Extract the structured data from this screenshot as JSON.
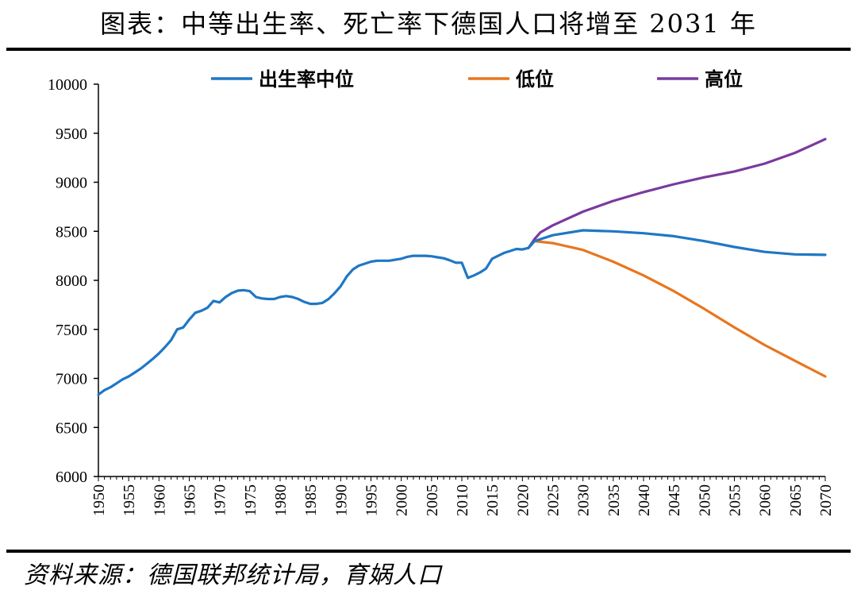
{
  "title": "图表：中等出生率、死亡率下德国人口将增至 2031 年",
  "source": "资料来源：德国联邦统计局，育娲人口",
  "chart_data": {
    "type": "line",
    "xlim": [
      1950,
      2070
    ],
    "ylim": [
      6000,
      10000
    ],
    "ylabel": "",
    "xlabel": "",
    "x_ticks": [
      1950,
      1955,
      1960,
      1965,
      1970,
      1975,
      1980,
      1985,
      1990,
      1995,
      2000,
      2005,
      2010,
      2015,
      2020,
      2025,
      2030,
      2035,
      2040,
      2045,
      2050,
      2055,
      2060,
      2065,
      2070
    ],
    "y_ticks": [
      6000,
      6500,
      7000,
      7500,
      8000,
      8500,
      9000,
      9500,
      10000
    ],
    "legend_position": "top",
    "series": [
      {
        "name": "出生率中位",
        "color": "#1f77c4",
        "points": [
          [
            1950,
            6835
          ],
          [
            1951,
            6880
          ],
          [
            1952,
            6910
          ],
          [
            1953,
            6950
          ],
          [
            1954,
            6990
          ],
          [
            1955,
            7020
          ],
          [
            1956,
            7060
          ],
          [
            1957,
            7100
          ],
          [
            1958,
            7150
          ],
          [
            1959,
            7200
          ],
          [
            1960,
            7255
          ],
          [
            1961,
            7320
          ],
          [
            1962,
            7390
          ],
          [
            1963,
            7500
          ],
          [
            1964,
            7520
          ],
          [
            1965,
            7600
          ],
          [
            1966,
            7670
          ],
          [
            1967,
            7690
          ],
          [
            1968,
            7720
          ],
          [
            1969,
            7790
          ],
          [
            1970,
            7775
          ],
          [
            1971,
            7830
          ],
          [
            1972,
            7870
          ],
          [
            1973,
            7895
          ],
          [
            1974,
            7900
          ],
          [
            1975,
            7890
          ],
          [
            1976,
            7830
          ],
          [
            1977,
            7815
          ],
          [
            1978,
            7810
          ],
          [
            1979,
            7810
          ],
          [
            1980,
            7830
          ],
          [
            1981,
            7840
          ],
          [
            1982,
            7830
          ],
          [
            1983,
            7810
          ],
          [
            1984,
            7780
          ],
          [
            1985,
            7760
          ],
          [
            1986,
            7760
          ],
          [
            1987,
            7770
          ],
          [
            1988,
            7810
          ],
          [
            1989,
            7870
          ],
          [
            1990,
            7940
          ],
          [
            1991,
            8040
          ],
          [
            1992,
            8110
          ],
          [
            1993,
            8150
          ],
          [
            1994,
            8170
          ],
          [
            1995,
            8190
          ],
          [
            1996,
            8200
          ],
          [
            1997,
            8200
          ],
          [
            1998,
            8200
          ],
          [
            1999,
            8210
          ],
          [
            2000,
            8220
          ],
          [
            2001,
            8240
          ],
          [
            2002,
            8250
          ],
          [
            2003,
            8250
          ],
          [
            2004,
            8250
          ],
          [
            2005,
            8245
          ],
          [
            2006,
            8235
          ],
          [
            2007,
            8225
          ],
          [
            2008,
            8205
          ],
          [
            2009,
            8180
          ],
          [
            2010,
            8180
          ],
          [
            2011,
            8025
          ],
          [
            2012,
            8050
          ],
          [
            2013,
            8080
          ],
          [
            2014,
            8120
          ],
          [
            2015,
            8220
          ],
          [
            2016,
            8250
          ],
          [
            2017,
            8280
          ],
          [
            2018,
            8300
          ],
          [
            2019,
            8320
          ],
          [
            2020,
            8315
          ],
          [
            2021,
            8330
          ],
          [
            2022,
            8400
          ],
          [
            2025,
            8460
          ],
          [
            2030,
            8510
          ],
          [
            2035,
            8500
          ],
          [
            2040,
            8480
          ],
          [
            2045,
            8450
          ],
          [
            2050,
            8400
          ],
          [
            2055,
            8340
          ],
          [
            2060,
            8290
          ],
          [
            2065,
            8265
          ],
          [
            2070,
            8260
          ]
        ]
      },
      {
        "name": "低位",
        "color": "#e8761f",
        "points": [
          [
            2021,
            8330
          ],
          [
            2022,
            8400
          ],
          [
            2025,
            8380
          ],
          [
            2030,
            8310
          ],
          [
            2035,
            8190
          ],
          [
            2040,
            8050
          ],
          [
            2045,
            7890
          ],
          [
            2050,
            7710
          ],
          [
            2055,
            7520
          ],
          [
            2060,
            7340
          ],
          [
            2065,
            7180
          ],
          [
            2070,
            7020
          ]
        ]
      },
      {
        "name": "高位",
        "color": "#7a3a9e",
        "points": [
          [
            2021,
            8330
          ],
          [
            2022,
            8420
          ],
          [
            2023,
            8490
          ],
          [
            2025,
            8560
          ],
          [
            2030,
            8700
          ],
          [
            2035,
            8810
          ],
          [
            2040,
            8900
          ],
          [
            2045,
            8980
          ],
          [
            2050,
            9050
          ],
          [
            2055,
            9110
          ],
          [
            2060,
            9190
          ],
          [
            2065,
            9300
          ],
          [
            2070,
            9440
          ]
        ]
      }
    ]
  }
}
